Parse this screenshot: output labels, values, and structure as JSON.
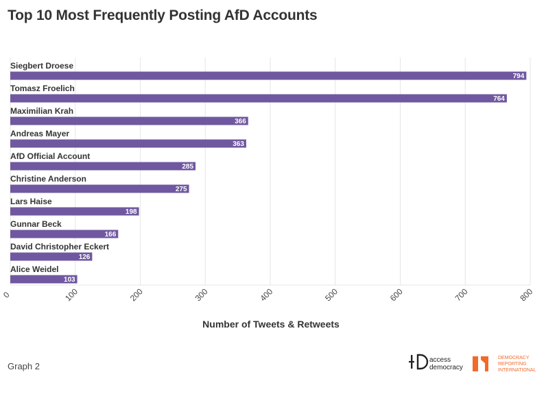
{
  "header": {
    "title": "Top 10 Most Frequently Posting AfD Accounts"
  },
  "footer": {
    "note": "Graph 2",
    "logo_access": {
      "line1": "access",
      "line2": "democracy"
    },
    "logo_dri": {
      "line1": "DEMOCRACY",
      "line2": "REPORTING",
      "line3": "INTERNATIONAL"
    }
  },
  "colors": {
    "bar": "#7058a0",
    "text": "#333333",
    "grid": "#e6e6e6",
    "dri_orange": "#f26a2a",
    "access_dark": "#222222"
  },
  "icons": [
    "access-democracy-logo-icon",
    "dri-logo-icon"
  ],
  "chart_data": {
    "type": "bar",
    "orientation": "horizontal",
    "title": "Top 10 Most Frequently Posting AfD Accounts",
    "xlabel": "Number of Tweets & Retweets",
    "ylabel": "",
    "categories": [
      "Siegbert Droese",
      "Tomasz Froelich",
      "Maximilian Krah",
      "Andreas Mayer",
      "AfD Official Account",
      "Christine Anderson",
      "Lars Haise",
      "Gunnar Beck",
      "David Christopher Eckert",
      "Alice Weidel"
    ],
    "values": [
      794,
      764,
      366,
      363,
      285,
      275,
      198,
      166,
      126,
      103
    ],
    "xlim": [
      0,
      800
    ],
    "xticks": [
      0,
      100,
      200,
      300,
      400,
      500,
      600,
      700,
      800
    ],
    "grid": "vertical",
    "data_labels": "inside-end"
  }
}
